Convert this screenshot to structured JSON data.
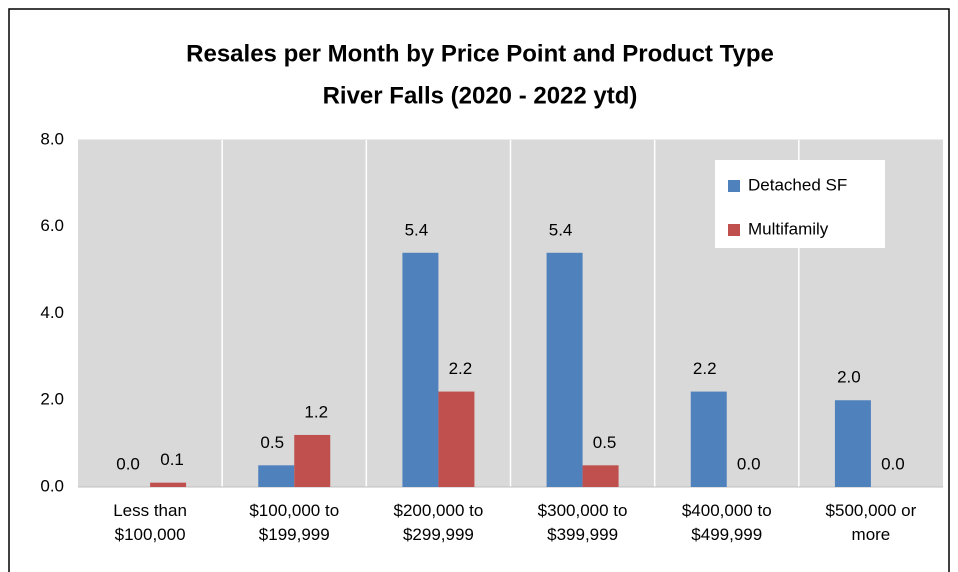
{
  "chart_data": {
    "type": "bar",
    "title": [
      "Resales per Month by Price Point and Product Type",
      "River Falls (2020 - 2022 ytd)"
    ],
    "categories": [
      "Less than $100,000",
      "$100,000 to $199,999",
      "$200,000 to $299,999",
      "$300,000 to $399,999",
      "$400,000 to $499,999",
      "$500,000 or more"
    ],
    "series": [
      {
        "name": "Detached SF",
        "color": "#4f81bd",
        "values": [
          0,
          0.5,
          5.4,
          5.4,
          2.2,
          2.0
        ],
        "value_labels": [
          "0.0",
          "0.5",
          "5.4",
          "5.4",
          "2.2",
          "2.0"
        ]
      },
      {
        "name": "Multifamily",
        "color": "#c0504d",
        "values": [
          0.1,
          1.2,
          2.2,
          0.5,
          0,
          0
        ],
        "value_labels": [
          "0.1",
          "1.2",
          "2.2",
          "0.5",
          "0.0",
          "0.0"
        ]
      }
    ],
    "ylim": [
      0,
      8
    ],
    "yticks": [
      {
        "value": 0,
        "label": "0.0"
      },
      {
        "value": 2,
        "label": "2.0"
      },
      {
        "value": 4,
        "label": "4.0"
      },
      {
        "value": 6,
        "label": "6.0"
      },
      {
        "value": 8,
        "label": "8.0"
      }
    ],
    "grid": true,
    "legend": "top-right"
  }
}
